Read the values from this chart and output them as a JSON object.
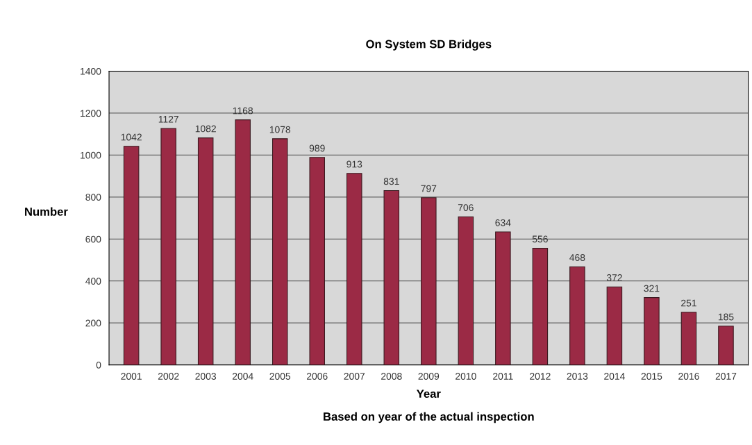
{
  "chart_data": {
    "type": "bar",
    "title": "On System SD Bridges",
    "xlabel": "Year",
    "ylabel": "Number",
    "annotations": [
      "Based on year of the actual inspection"
    ],
    "categories": [
      "2001",
      "2002",
      "2003",
      "2004",
      "2005",
      "2006",
      "2007",
      "2008",
      "2009",
      "2010",
      "2011",
      "2012",
      "2013",
      "2014",
      "2015",
      "2016",
      "2017"
    ],
    "values": [
      1042,
      1127,
      1082,
      1168,
      1078,
      989,
      913,
      831,
      797,
      706,
      634,
      556,
      468,
      372,
      321,
      251,
      185
    ],
    "color": "#9b2a45",
    "ylim": [
      0,
      1400
    ],
    "yticks": [
      0,
      200,
      400,
      600,
      800,
      1000,
      1200,
      1400
    ],
    "grid": "y",
    "data_labels": true,
    "legend": false
  }
}
